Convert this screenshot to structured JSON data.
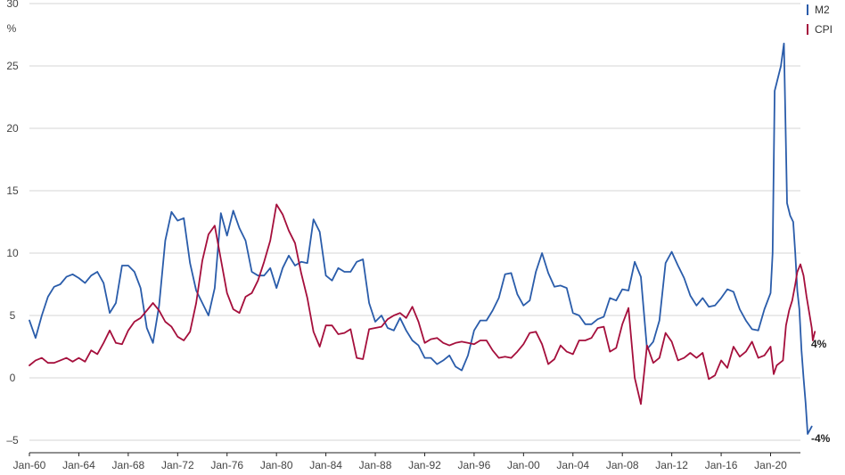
{
  "chart_data": {
    "type": "line",
    "ylabel": "%",
    "ylim": [
      -6,
      30
    ],
    "yticks": [
      {
        "value": 30,
        "label": "30"
      },
      {
        "value": 25,
        "label": "25"
      },
      {
        "value": 20,
        "label": "20"
      },
      {
        "value": 15,
        "label": "15"
      },
      {
        "value": 10,
        "label": "10"
      },
      {
        "value": 5,
        "label": "5"
      },
      {
        "value": 0,
        "label": "0"
      },
      {
        "value": -5,
        "label": "–5"
      }
    ],
    "xlim": [
      "1960-01",
      "2022-06"
    ],
    "xticks": [
      {
        "value": "1960-01",
        "label": "Jan-60"
      },
      {
        "value": "1964-01",
        "label": "Jan-64"
      },
      {
        "value": "1968-01",
        "label": "Jan-68"
      },
      {
        "value": "1972-01",
        "label": "Jan-72"
      },
      {
        "value": "1976-01",
        "label": "Jan-76"
      },
      {
        "value": "1980-01",
        "label": "Jan-80"
      },
      {
        "value": "1984-01",
        "label": "Jan-84"
      },
      {
        "value": "1988-01",
        "label": "Jan-88"
      },
      {
        "value": "1992-01",
        "label": "Jan-92"
      },
      {
        "value": "1996-01",
        "label": "Jan-96"
      },
      {
        "value": "2000-01",
        "label": "Jan-00"
      },
      {
        "value": "2004-01",
        "label": "Jan-04"
      },
      {
        "value": "2008-01",
        "label": "Jan-08"
      },
      {
        "value": "2012-01",
        "label": "Jan-12"
      },
      {
        "value": "2016-01",
        "label": "Jan-16"
      },
      {
        "value": "2020-01",
        "label": "Jan-20"
      }
    ],
    "grid": true,
    "legend": {
      "placement": "top-right"
    },
    "series": [
      {
        "name": "M2",
        "color": "#2a5caa",
        "end_label": "-4%",
        "points": [
          [
            "1960-01",
            4.6
          ],
          [
            "1960-07",
            3.2
          ],
          [
            "1961-01",
            5.0
          ],
          [
            "1961-07",
            6.5
          ],
          [
            "1962-01",
            7.3
          ],
          [
            "1962-07",
            7.5
          ],
          [
            "1963-01",
            8.1
          ],
          [
            "1963-07",
            8.3
          ],
          [
            "1964-01",
            8.0
          ],
          [
            "1964-07",
            7.6
          ],
          [
            "1965-01",
            8.2
          ],
          [
            "1965-07",
            8.5
          ],
          [
            "1966-01",
            7.6
          ],
          [
            "1966-07",
            5.2
          ],
          [
            "1967-01",
            6.0
          ],
          [
            "1967-07",
            9.0
          ],
          [
            "1968-01",
            9.0
          ],
          [
            "1968-07",
            8.5
          ],
          [
            "1969-01",
            7.2
          ],
          [
            "1969-07",
            4.0
          ],
          [
            "1970-01",
            2.8
          ],
          [
            "1970-07",
            5.8
          ],
          [
            "1971-01",
            11.0
          ],
          [
            "1971-07",
            13.3
          ],
          [
            "1972-01",
            12.6
          ],
          [
            "1972-07",
            12.8
          ],
          [
            "1973-01",
            9.2
          ],
          [
            "1973-07",
            7.0
          ],
          [
            "1974-01",
            6.0
          ],
          [
            "1974-07",
            5.0
          ],
          [
            "1975-01",
            7.2
          ],
          [
            "1975-07",
            13.2
          ],
          [
            "1976-01",
            11.4
          ],
          [
            "1976-07",
            13.4
          ],
          [
            "1977-01",
            12.0
          ],
          [
            "1977-07",
            11.0
          ],
          [
            "1978-01",
            8.5
          ],
          [
            "1978-07",
            8.2
          ],
          [
            "1979-01",
            8.2
          ],
          [
            "1979-07",
            8.8
          ],
          [
            "1980-01",
            7.2
          ],
          [
            "1980-07",
            8.8
          ],
          [
            "1981-01",
            9.8
          ],
          [
            "1981-07",
            9.0
          ],
          [
            "1982-01",
            9.3
          ],
          [
            "1982-07",
            9.2
          ],
          [
            "1983-01",
            12.7
          ],
          [
            "1983-07",
            11.7
          ],
          [
            "1984-01",
            8.2
          ],
          [
            "1984-07",
            7.8
          ],
          [
            "1985-01",
            8.8
          ],
          [
            "1985-07",
            8.5
          ],
          [
            "1986-01",
            8.5
          ],
          [
            "1986-07",
            9.3
          ],
          [
            "1987-01",
            9.5
          ],
          [
            "1987-07",
            6.0
          ],
          [
            "1988-01",
            4.5
          ],
          [
            "1988-07",
            5.0
          ],
          [
            "1989-01",
            4.0
          ],
          [
            "1989-07",
            3.8
          ],
          [
            "1990-01",
            4.8
          ],
          [
            "1990-07",
            3.8
          ],
          [
            "1991-01",
            3.0
          ],
          [
            "1991-07",
            2.6
          ],
          [
            "1992-01",
            1.6
          ],
          [
            "1992-07",
            1.6
          ],
          [
            "1993-01",
            1.1
          ],
          [
            "1993-07",
            1.4
          ],
          [
            "1994-01",
            1.8
          ],
          [
            "1994-07",
            0.9
          ],
          [
            "1995-01",
            0.6
          ],
          [
            "1995-07",
            1.8
          ],
          [
            "1996-01",
            3.8
          ],
          [
            "1996-07",
            4.6
          ],
          [
            "1997-01",
            4.6
          ],
          [
            "1997-07",
            5.4
          ],
          [
            "1998-01",
            6.4
          ],
          [
            "1998-07",
            8.3
          ],
          [
            "1999-01",
            8.4
          ],
          [
            "1999-07",
            6.7
          ],
          [
            "2000-01",
            5.8
          ],
          [
            "2000-07",
            6.2
          ],
          [
            "2001-01",
            8.5
          ],
          [
            "2001-07",
            10.0
          ],
          [
            "2002-01",
            8.4
          ],
          [
            "2002-07",
            7.3
          ],
          [
            "2003-01",
            7.4
          ],
          [
            "2003-07",
            7.2
          ],
          [
            "2004-01",
            5.2
          ],
          [
            "2004-07",
            5.0
          ],
          [
            "2005-01",
            4.3
          ],
          [
            "2005-07",
            4.3
          ],
          [
            "2006-01",
            4.7
          ],
          [
            "2006-07",
            4.9
          ],
          [
            "2007-01",
            6.4
          ],
          [
            "2007-07",
            6.2
          ],
          [
            "2008-01",
            7.1
          ],
          [
            "2008-07",
            7.0
          ],
          [
            "2009-01",
            9.3
          ],
          [
            "2009-07",
            8.1
          ],
          [
            "2010-01",
            2.3
          ],
          [
            "2010-07",
            2.9
          ],
          [
            "2011-01",
            4.6
          ],
          [
            "2011-07",
            9.2
          ],
          [
            "2012-01",
            10.1
          ],
          [
            "2012-07",
            9.0
          ],
          [
            "2013-01",
            8.0
          ],
          [
            "2013-07",
            6.6
          ],
          [
            "2014-01",
            5.8
          ],
          [
            "2014-07",
            6.4
          ],
          [
            "2015-01",
            5.7
          ],
          [
            "2015-07",
            5.8
          ],
          [
            "2016-01",
            6.4
          ],
          [
            "2016-07",
            7.1
          ],
          [
            "2017-01",
            6.9
          ],
          [
            "2017-07",
            5.5
          ],
          [
            "2018-01",
            4.6
          ],
          [
            "2018-07",
            3.9
          ],
          [
            "2019-01",
            3.8
          ],
          [
            "2019-07",
            5.5
          ],
          [
            "2020-01",
            6.8
          ],
          [
            "2020-03",
            10.0
          ],
          [
            "2020-05",
            23.0
          ],
          [
            "2020-08",
            24.0
          ],
          [
            "2020-11",
            25.0
          ],
          [
            "2021-02",
            26.8
          ],
          [
            "2021-05",
            14.0
          ],
          [
            "2021-08",
            13.0
          ],
          [
            "2021-11",
            12.5
          ],
          [
            "2022-01",
            10.0
          ],
          [
            "2022-03",
            7.0
          ],
          [
            "2022-05",
            5.5
          ],
          [
            "2022-07",
            2.2
          ],
          [
            "2022-09",
            0.0
          ],
          [
            "2022-11",
            -2.0
          ],
          [
            "2023-01",
            -4.5
          ],
          [
            "2023-03",
            -4.2
          ],
          [
            "2023-05",
            -3.9
          ]
        ]
      },
      {
        "name": "CPI",
        "color": "#a50f3c",
        "end_label": "4%",
        "points": [
          [
            "1960-01",
            1.0
          ],
          [
            "1960-07",
            1.4
          ],
          [
            "1961-01",
            1.6
          ],
          [
            "1961-07",
            1.2
          ],
          [
            "1962-01",
            1.2
          ],
          [
            "1962-07",
            1.4
          ],
          [
            "1963-01",
            1.6
          ],
          [
            "1963-07",
            1.3
          ],
          [
            "1964-01",
            1.6
          ],
          [
            "1964-07",
            1.3
          ],
          [
            "1965-01",
            2.2
          ],
          [
            "1965-07",
            1.9
          ],
          [
            "1966-01",
            2.8
          ],
          [
            "1966-07",
            3.8
          ],
          [
            "1967-01",
            2.8
          ],
          [
            "1967-07",
            2.7
          ],
          [
            "1968-01",
            3.8
          ],
          [
            "1968-07",
            4.5
          ],
          [
            "1969-01",
            4.8
          ],
          [
            "1969-07",
            5.4
          ],
          [
            "1970-01",
            6.0
          ],
          [
            "1970-07",
            5.4
          ],
          [
            "1971-01",
            4.5
          ],
          [
            "1971-07",
            4.1
          ],
          [
            "1972-01",
            3.3
          ],
          [
            "1972-07",
            3.0
          ],
          [
            "1973-01",
            3.7
          ],
          [
            "1973-07",
            6.0
          ],
          [
            "1974-01",
            9.4
          ],
          [
            "1974-07",
            11.5
          ],
          [
            "1975-01",
            12.2
          ],
          [
            "1975-07",
            9.5
          ],
          [
            "1976-01",
            6.8
          ],
          [
            "1976-07",
            5.5
          ],
          [
            "1977-01",
            5.2
          ],
          [
            "1977-07",
            6.5
          ],
          [
            "1978-01",
            6.8
          ],
          [
            "1978-07",
            7.8
          ],
          [
            "1979-01",
            9.3
          ],
          [
            "1979-07",
            11.0
          ],
          [
            "1980-01",
            13.9
          ],
          [
            "1980-07",
            13.1
          ],
          [
            "1981-01",
            11.8
          ],
          [
            "1981-07",
            10.8
          ],
          [
            "1982-01",
            8.4
          ],
          [
            "1982-07",
            6.4
          ],
          [
            "1983-01",
            3.7
          ],
          [
            "1983-07",
            2.5
          ],
          [
            "1984-01",
            4.2
          ],
          [
            "1984-07",
            4.2
          ],
          [
            "1985-01",
            3.5
          ],
          [
            "1985-07",
            3.6
          ],
          [
            "1986-01",
            3.9
          ],
          [
            "1986-07",
            1.6
          ],
          [
            "1987-01",
            1.5
          ],
          [
            "1987-07",
            3.9
          ],
          [
            "1988-01",
            4.0
          ],
          [
            "1988-07",
            4.1
          ],
          [
            "1989-01",
            4.7
          ],
          [
            "1989-07",
            5.0
          ],
          [
            "1990-01",
            5.2
          ],
          [
            "1990-07",
            4.8
          ],
          [
            "1991-01",
            5.7
          ],
          [
            "1991-07",
            4.5
          ],
          [
            "1992-01",
            2.8
          ],
          [
            "1992-07",
            3.1
          ],
          [
            "1993-01",
            3.2
          ],
          [
            "1993-07",
            2.8
          ],
          [
            "1994-01",
            2.6
          ],
          [
            "1994-07",
            2.8
          ],
          [
            "1995-01",
            2.9
          ],
          [
            "1995-07",
            2.8
          ],
          [
            "1996-01",
            2.7
          ],
          [
            "1996-07",
            3.0
          ],
          [
            "1997-01",
            3.0
          ],
          [
            "1997-07",
            2.2
          ],
          [
            "1998-01",
            1.6
          ],
          [
            "1998-07",
            1.7
          ],
          [
            "1999-01",
            1.6
          ],
          [
            "1999-07",
            2.1
          ],
          [
            "2000-01",
            2.7
          ],
          [
            "2000-07",
            3.6
          ],
          [
            "2001-01",
            3.7
          ],
          [
            "2001-07",
            2.7
          ],
          [
            "2002-01",
            1.1
          ],
          [
            "2002-07",
            1.5
          ],
          [
            "2003-01",
            2.6
          ],
          [
            "2003-07",
            2.1
          ],
          [
            "2004-01",
            1.9
          ],
          [
            "2004-07",
            3.0
          ],
          [
            "2005-01",
            3.0
          ],
          [
            "2005-07",
            3.2
          ],
          [
            "2006-01",
            4.0
          ],
          [
            "2006-07",
            4.1
          ],
          [
            "2007-01",
            2.1
          ],
          [
            "2007-07",
            2.4
          ],
          [
            "2008-01",
            4.3
          ],
          [
            "2008-07",
            5.6
          ],
          [
            "2009-01",
            0.0
          ],
          [
            "2009-07",
            -2.1
          ],
          [
            "2010-01",
            2.6
          ],
          [
            "2010-07",
            1.2
          ],
          [
            "2011-01",
            1.6
          ],
          [
            "2011-07",
            3.6
          ],
          [
            "2012-01",
            2.9
          ],
          [
            "2012-07",
            1.4
          ],
          [
            "2013-01",
            1.6
          ],
          [
            "2013-07",
            2.0
          ],
          [
            "2014-01",
            1.6
          ],
          [
            "2014-07",
            2.0
          ],
          [
            "2015-01",
            -0.1
          ],
          [
            "2015-07",
            0.2
          ],
          [
            "2016-01",
            1.4
          ],
          [
            "2016-07",
            0.8
          ],
          [
            "2017-01",
            2.5
          ],
          [
            "2017-07",
            1.7
          ],
          [
            "2018-01",
            2.1
          ],
          [
            "2018-07",
            2.9
          ],
          [
            "2019-01",
            1.6
          ],
          [
            "2019-07",
            1.8
          ],
          [
            "2020-01",
            2.5
          ],
          [
            "2020-04",
            0.3
          ],
          [
            "2020-07",
            1.0
          ],
          [
            "2020-10",
            1.2
          ],
          [
            "2021-01",
            1.4
          ],
          [
            "2021-04",
            4.2
          ],
          [
            "2021-07",
            5.4
          ],
          [
            "2021-10",
            6.2
          ],
          [
            "2022-01",
            7.5
          ],
          [
            "2022-03",
            8.5
          ],
          [
            "2022-06",
            9.1
          ],
          [
            "2022-09",
            8.2
          ],
          [
            "2022-12",
            6.5
          ],
          [
            "2023-03",
            5.0
          ],
          [
            "2023-05",
            4.0
          ],
          [
            "2023-06",
            3.0
          ],
          [
            "2023-08",
            3.7
          ]
        ]
      }
    ]
  }
}
